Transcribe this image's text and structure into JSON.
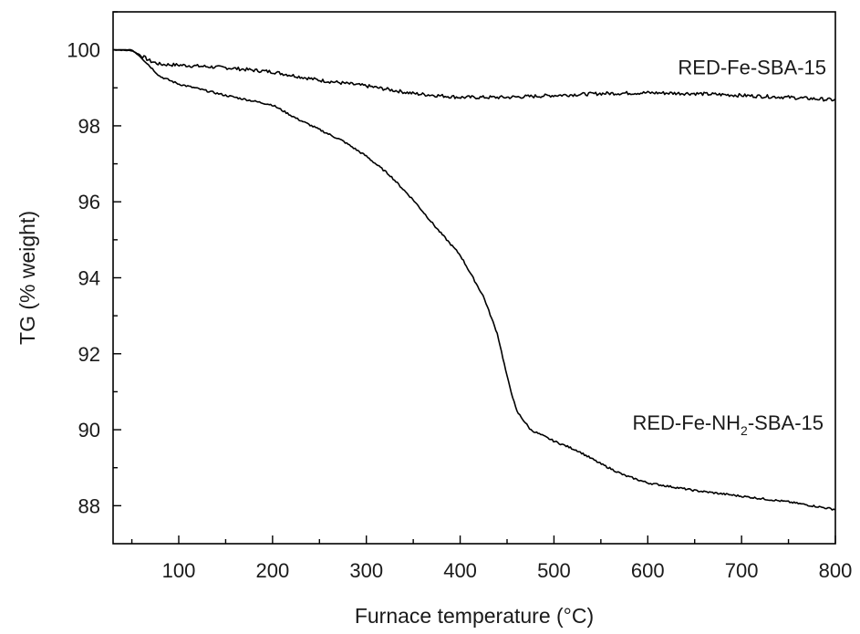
{
  "chart_data": {
    "type": "line",
    "xlabel": "Furnace temperature (°C)",
    "ylabel": "TG (% weight)",
    "xlim": [
      30,
      800
    ],
    "ylim": [
      87.0,
      101.0
    ],
    "x_ticks": [
      100,
      200,
      300,
      400,
      500,
      600,
      700,
      800
    ],
    "y_ticks": [
      88,
      90,
      92,
      94,
      96,
      98,
      100
    ],
    "grid": false,
    "legend": "none (series labelled directly on the plot)",
    "series": [
      {
        "name": "RED-Fe-SBA-15",
        "label_parts": {
          "main": "RED-Fe-SBA-15"
        },
        "x": [
          30,
          50,
          60,
          70,
          80,
          100,
          150,
          200,
          250,
          300,
          350,
          400,
          450,
          500,
          550,
          600,
          650,
          700,
          750,
          800
        ],
        "y": [
          100.0,
          99.98,
          99.85,
          99.7,
          99.62,
          99.6,
          99.53,
          99.42,
          99.2,
          99.05,
          98.85,
          98.75,
          98.75,
          98.8,
          98.85,
          98.87,
          98.85,
          98.8,
          98.75,
          98.68
        ]
      },
      {
        "name": "RED-Fe-NH2-SBA-15",
        "label_parts": {
          "pre": "RED-Fe-NH",
          "sub": "2",
          "post": "-SBA-15"
        },
        "x": [
          30,
          50,
          60,
          70,
          80,
          90,
          100,
          125,
          150,
          200,
          225,
          250,
          275,
          300,
          325,
          350,
          375,
          400,
          425,
          440,
          450,
          460,
          475,
          500,
          525,
          550,
          575,
          600,
          650,
          700,
          750,
          800
        ],
        "y": [
          100.0,
          100.0,
          99.8,
          99.55,
          99.3,
          99.2,
          99.1,
          98.95,
          98.8,
          98.55,
          98.2,
          97.9,
          97.6,
          97.2,
          96.7,
          96.05,
          95.3,
          94.6,
          93.5,
          92.5,
          91.4,
          90.5,
          90.0,
          89.7,
          89.45,
          89.1,
          88.8,
          88.6,
          88.4,
          88.25,
          88.1,
          87.9
        ]
      }
    ]
  }
}
